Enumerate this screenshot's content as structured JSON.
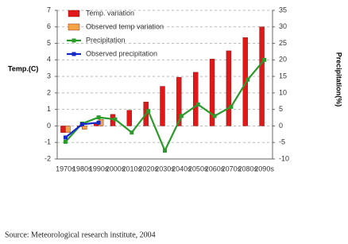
{
  "chart_data": {
    "type": "combo",
    "categories": [
      "1970s",
      "1980s",
      "1990s",
      "2000s",
      "2010s",
      "2020s",
      "2030s",
      "2040s",
      "2050s",
      "2060s",
      "2070s",
      "2080s",
      "2090s"
    ],
    "y_label": "Temp.(C)",
    "y2_label": "Precipitation(%)",
    "ylim": [
      -2,
      7
    ],
    "yticks": [
      -2,
      -1,
      0,
      1,
      2,
      3,
      4,
      5,
      6,
      7
    ],
    "y2lim": [
      -10,
      35
    ],
    "y2ticks": [
      -10,
      -5,
      0,
      5,
      10,
      15,
      20,
      25,
      30,
      35
    ],
    "grid": true,
    "legend": "top-left",
    "series": [
      {
        "name": "Temp. variation",
        "type": "bar",
        "color": "#e01818",
        "values": [
          -0.4,
          -0.05,
          0.2,
          0.7,
          0.95,
          1.45,
          2.4,
          2.95,
          3.25,
          4.05,
          4.55,
          5.35,
          6.0
        ]
      },
      {
        "name": "Observed temp variation",
        "type": "bar",
        "color": "#f4a448",
        "values": [
          -0.4,
          -0.2,
          0.4,
          null,
          null,
          null,
          null,
          null,
          null,
          null,
          null,
          null,
          null
        ]
      },
      {
        "name": "Precipitation",
        "type": "line",
        "axis": "y2",
        "color": "#2a9a2a",
        "values": [
          -4.8,
          0.7,
          2.6,
          2,
          -2,
          4.5,
          -7.5,
          3,
          6.5,
          3,
          5.8,
          14,
          20
        ]
      },
      {
        "name": "Observed precipitation",
        "type": "line",
        "axis": "y2",
        "color": "#1428c8",
        "values": [
          -3.5,
          0.5,
          1,
          null,
          null,
          null,
          null,
          null,
          null,
          null,
          null,
          null,
          null
        ]
      }
    ],
    "source": "Source: Meteorological research institute, 2004"
  }
}
